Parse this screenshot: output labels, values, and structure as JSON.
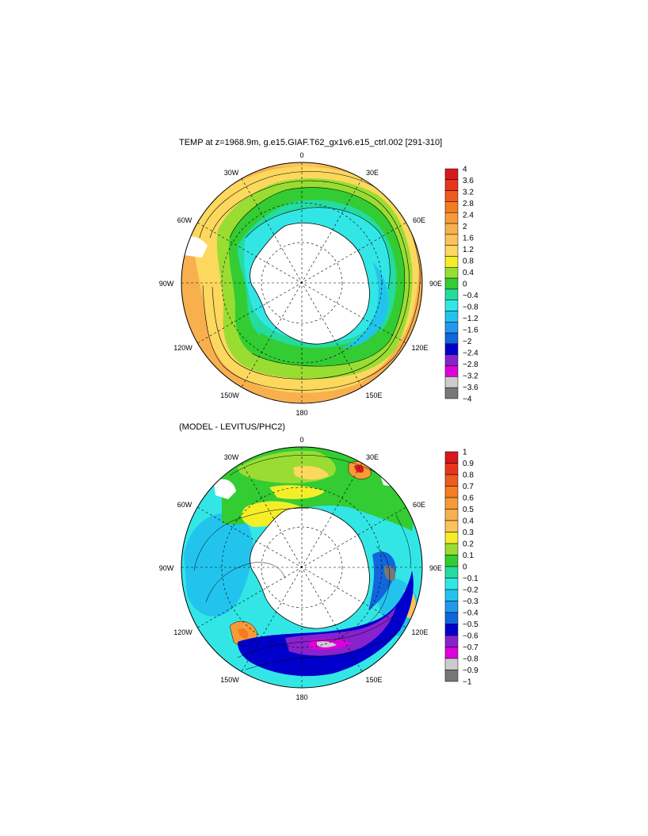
{
  "panels": [
    {
      "title": "TEMP at z=1968.9m, g.e15.GIAF.T62_gx1v6.e15_ctrl.002 [291-310]",
      "lon_labels": [
        "0",
        "30E",
        "60E",
        "90E",
        "120E",
        "150E",
        "180",
        "150W",
        "120W",
        "90W",
        "60W",
        "30W"
      ],
      "colorbar": {
        "labels": [
          "4",
          "3.6",
          "3.2",
          "2.8",
          "2.4",
          "2",
          "1.6",
          "1.2",
          "0.8",
          "0.4",
          "0",
          "−0.4",
          "−0.8",
          "−1.2",
          "−1.6",
          "−2",
          "−2.4",
          "−2.8",
          "−3.2",
          "−3.6",
          "−4"
        ],
        "colors": [
          "#d7191c",
          "#e8361d",
          "#ef5a1f",
          "#f57c20",
          "#f79b38",
          "#f8b04f",
          "#fbc35c",
          "#fdd85e",
          "#f3ee28",
          "#99dd33",
          "#33cc33",
          "#24dba0",
          "#33e6e6",
          "#22c4ee",
          "#2299ee",
          "#1166dd",
          "#0000cc",
          "#8822cc",
          "#dd00dd",
          "#cccccc",
          "#777777"
        ]
      }
    },
    {
      "title": "(MODEL - LEVITUS/PHC2)",
      "lon_labels": [
        "0",
        "30E",
        "60E",
        "90E",
        "120E",
        "150E",
        "180",
        "150W",
        "120W",
        "90W",
        "60W",
        "30W"
      ],
      "colorbar": {
        "labels": [
          "1",
          "0.9",
          "0.8",
          "0.7",
          "0.6",
          "0.5",
          "0.4",
          "0.3",
          "0.2",
          "0.1",
          "0",
          "−0.1",
          "−0.2",
          "−0.3",
          "−0.4",
          "−0.5",
          "−0.6",
          "−0.7",
          "−0.8",
          "−0.9",
          "−1"
        ],
        "colors": [
          "#d7191c",
          "#e8361d",
          "#ef5a1f",
          "#f57c20",
          "#f79b38",
          "#f8b04f",
          "#fbc35c",
          "#f3ee28",
          "#99dd33",
          "#33cc33",
          "#24dba0",
          "#33e6e6",
          "#22c4ee",
          "#2299ee",
          "#1166dd",
          "#0000cc",
          "#8822cc",
          "#dd00dd",
          "#cccccc",
          "#777777"
        ]
      }
    }
  ]
}
